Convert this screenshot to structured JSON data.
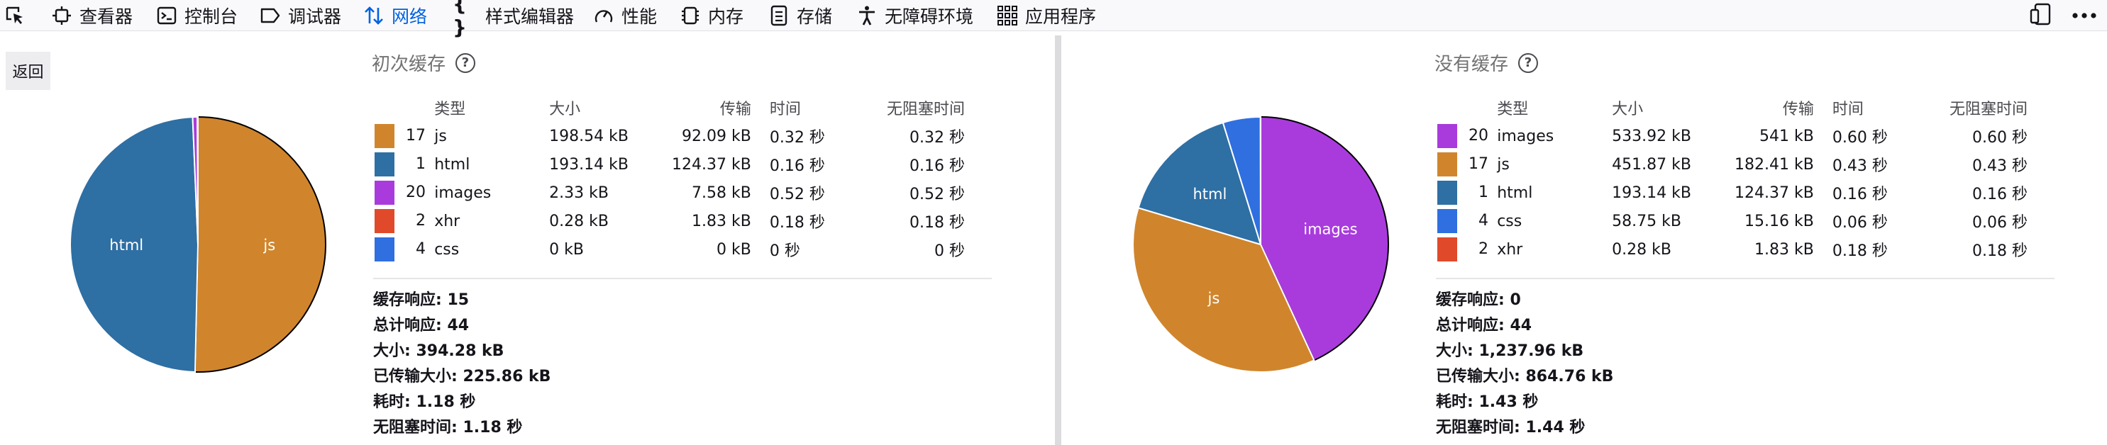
{
  "toolbar": {
    "tabs": [
      {
        "label": "查看器",
        "icon": "inspector-icon"
      },
      {
        "label": "控制台",
        "icon": "console-icon"
      },
      {
        "label": "调试器",
        "icon": "debugger-icon"
      },
      {
        "label": "网络",
        "icon": "network-icon",
        "active": true
      },
      {
        "label": "样式编辑器",
        "icon": "style-editor-icon"
      },
      {
        "label": "性能",
        "icon": "performance-icon"
      },
      {
        "label": "内存",
        "icon": "memory-icon"
      },
      {
        "label": "存储",
        "icon": "storage-icon"
      },
      {
        "label": "无障碍环境",
        "icon": "accessibility-icon"
      },
      {
        "label": "应用程序",
        "icon": "application-icon"
      }
    ],
    "active_color": "#0061e0"
  },
  "back_label": "返回",
  "columns": [
    "类型",
    "大小",
    "传输",
    "时间",
    "无阻塞时间"
  ],
  "colors": {
    "js": "#d0852c",
    "html": "#2e6fa4",
    "images": "#a93bdd",
    "xhr": "#e04a2a",
    "css": "#2f6fe0"
  },
  "primed": {
    "title": "初次缓存",
    "rows": [
      {
        "count": "17",
        "type": "js",
        "size": "198.54 kB",
        "transfer": "92.09 kB",
        "time": "0.32 秒",
        "nonblocking": "0.32 秒"
      },
      {
        "count": "1",
        "type": "html",
        "size": "193.14 kB",
        "transfer": "124.37 kB",
        "time": "0.16 秒",
        "nonblocking": "0.16 秒"
      },
      {
        "count": "20",
        "type": "images",
        "size": "2.33 kB",
        "transfer": "7.58 kB",
        "time": "0.52 秒",
        "nonblocking": "0.52 秒"
      },
      {
        "count": "2",
        "type": "xhr",
        "size": "0.28 kB",
        "transfer": "1.83 kB",
        "time": "0.18 秒",
        "nonblocking": "0.18 秒"
      },
      {
        "count": "4",
        "type": "css",
        "size": "0 kB",
        "transfer": "0 kB",
        "time": "0 秒",
        "nonblocking": "0 秒"
      }
    ],
    "summary": [
      {
        "label": "缓存响应:",
        "value": "15"
      },
      {
        "label": "总计响应:",
        "value": "44"
      },
      {
        "label": "大小:",
        "value": "394.28 kB"
      },
      {
        "label": "已传输大小:",
        "value": "225.86 kB"
      },
      {
        "label": "耗时:",
        "value": "1.18 秒"
      },
      {
        "label": "无阻塞时间:",
        "value": "1.18 秒"
      }
    ],
    "pie": [
      {
        "type": "js",
        "value": 198.54,
        "label": "js"
      },
      {
        "type": "html",
        "value": 193.14,
        "label": "html"
      },
      {
        "type": "images",
        "value": 2.33,
        "label": ""
      },
      {
        "type": "xhr",
        "value": 0.28,
        "label": ""
      }
    ]
  },
  "empty": {
    "title": "没有缓存",
    "rows": [
      {
        "count": "20",
        "type": "images",
        "size": "533.92 kB",
        "transfer": "541 kB",
        "time": "0.60 秒",
        "nonblocking": "0.60 秒"
      },
      {
        "count": "17",
        "type": "js",
        "size": "451.87 kB",
        "transfer": "182.41 kB",
        "time": "0.43 秒",
        "nonblocking": "0.43 秒"
      },
      {
        "count": "1",
        "type": "html",
        "size": "193.14 kB",
        "transfer": "124.37 kB",
        "time": "0.16 秒",
        "nonblocking": "0.16 秒"
      },
      {
        "count": "4",
        "type": "css",
        "size": "58.75 kB",
        "transfer": "15.16 kB",
        "time": "0.06 秒",
        "nonblocking": "0.06 秒"
      },
      {
        "count": "2",
        "type": "xhr",
        "size": "0.28 kB",
        "transfer": "1.83 kB",
        "time": "0.18 秒",
        "nonblocking": "0.18 秒"
      }
    ],
    "summary": [
      {
        "label": "缓存响应:",
        "value": "0"
      },
      {
        "label": "总计响应:",
        "value": "44"
      },
      {
        "label": "大小:",
        "value": "1,237.96 kB"
      },
      {
        "label": "已传输大小:",
        "value": "864.76 kB"
      },
      {
        "label": "耗时:",
        "value": "1.43 秒"
      },
      {
        "label": "无阻塞时间:",
        "value": "1.44 秒"
      }
    ],
    "pie": [
      {
        "type": "images",
        "value": 533.92,
        "label": "images"
      },
      {
        "type": "js",
        "value": 451.87,
        "label": "js"
      },
      {
        "type": "html",
        "value": 193.14,
        "label": "html"
      },
      {
        "type": "css",
        "value": 58.75,
        "label": ""
      },
      {
        "type": "xhr",
        "value": 0.28,
        "label": ""
      }
    ]
  }
}
